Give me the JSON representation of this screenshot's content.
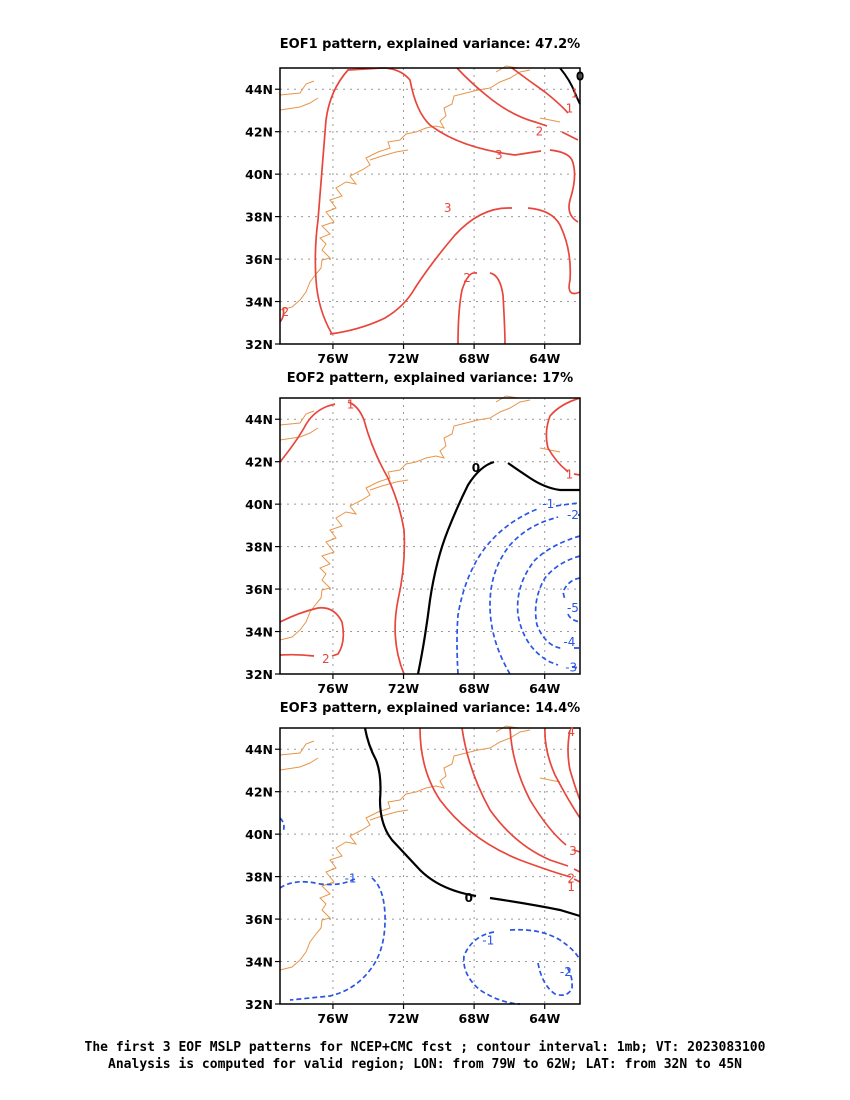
{
  "chart_data": [
    {
      "type": "contour",
      "title": "EOF1 pattern, explained variance: 47.2%",
      "xlim": [
        -79,
        -62
      ],
      "ylim": [
        32,
        45
      ],
      "x_ticks": [
        "76W",
        "72W",
        "68W",
        "64W"
      ],
      "y_ticks": [
        "32N",
        "34N",
        "36N",
        "38N",
        "40N",
        "42N",
        "44N"
      ],
      "contour_labels": [
        {
          "value": "1",
          "lon": -62.3,
          "lat": 43.8,
          "sign": "positive"
        },
        {
          "value": "1",
          "lon": -62.6,
          "lat": 43.1,
          "sign": "positive"
        },
        {
          "value": "2",
          "lon": -64.3,
          "lat": 42.0,
          "sign": "positive"
        },
        {
          "value": "3",
          "lon": -66.6,
          "lat": 40.9,
          "sign": "positive"
        },
        {
          "value": "3",
          "lon": -69.5,
          "lat": 38.4,
          "sign": "positive"
        },
        {
          "value": "2",
          "lon": -78.7,
          "lat": 33.5,
          "sign": "positive"
        },
        {
          "value": "2",
          "lon": -68.4,
          "lat": 35.1,
          "sign": "positive"
        },
        {
          "value": "0",
          "lon": -62.0,
          "lat": 44.6,
          "sign": "zero"
        }
      ]
    },
    {
      "type": "contour",
      "title": "EOF2 pattern, explained variance: 17%",
      "xlim": [
        -79,
        -62
      ],
      "ylim": [
        32,
        45
      ],
      "x_ticks": [
        "76W",
        "72W",
        "68W",
        "64W"
      ],
      "y_ticks": [
        "32N",
        "34N",
        "36N",
        "38N",
        "40N",
        "42N",
        "44N"
      ],
      "contour_labels": [
        {
          "value": "1",
          "lon": -75.0,
          "lat": 44.7,
          "sign": "positive"
        },
        {
          "value": "1",
          "lon": -62.6,
          "lat": 41.4,
          "sign": "positive"
        },
        {
          "value": "2",
          "lon": -76.4,
          "lat": 32.7,
          "sign": "positive"
        },
        {
          "value": "0",
          "lon": -67.9,
          "lat": 41.7,
          "sign": "zero"
        },
        {
          "value": "-1",
          "lon": -63.8,
          "lat": 40.0,
          "sign": "negative"
        },
        {
          "value": "-2",
          "lon": -62.4,
          "lat": 39.5,
          "sign": "negative"
        },
        {
          "value": "-5",
          "lon": -62.4,
          "lat": 35.1,
          "sign": "negative"
        },
        {
          "value": "-4",
          "lon": -62.6,
          "lat": 33.5,
          "sign": "negative"
        },
        {
          "value": "-3",
          "lon": -62.5,
          "lat": 32.3,
          "sign": "negative"
        }
      ]
    },
    {
      "type": "contour",
      "title": "EOF3 pattern, explained variance: 14.4%",
      "xlim": [
        -79,
        -62
      ],
      "ylim": [
        32,
        45
      ],
      "x_ticks": [
        "76W",
        "72W",
        "68W",
        "64W"
      ],
      "y_ticks": [
        "32N",
        "34N",
        "36N",
        "38N",
        "40N",
        "42N",
        "44N"
      ],
      "contour_labels": [
        {
          "value": "4",
          "lon": -62.5,
          "lat": 44.8,
          "sign": "positive"
        },
        {
          "value": "3",
          "lon": -62.4,
          "lat": 39.2,
          "sign": "positive"
        },
        {
          "value": "2",
          "lon": -62.5,
          "lat": 37.9,
          "sign": "positive"
        },
        {
          "value": "1",
          "lon": -62.5,
          "lat": 37.5,
          "sign": "positive"
        },
        {
          "value": "0",
          "lon": -68.3,
          "lat": 37.0,
          "sign": "zero"
        },
        {
          "value": "-1",
          "lon": -75.0,
          "lat": 37.9,
          "sign": "negative"
        },
        {
          "value": "-1",
          "lon": -67.2,
          "lat": 35.0,
          "sign": "negative"
        },
        {
          "value": "-2",
          "lon": -62.8,
          "lat": 33.5,
          "sign": "negative"
        }
      ]
    }
  ],
  "caption_line1": "The first 3 EOF MSLP patterns for NCEP+CMC fcst ; contour interval: 1mb; VT: 2023083100",
  "caption_line2": "Analysis is computed for valid region; LON: from 79W to 62W; LAT: from 32N to 45N",
  "colors": {
    "positive": "#e8463c",
    "negative": "#2a55e6",
    "zero": "#000000",
    "coast": "#e8954a",
    "grid": "#999999"
  }
}
